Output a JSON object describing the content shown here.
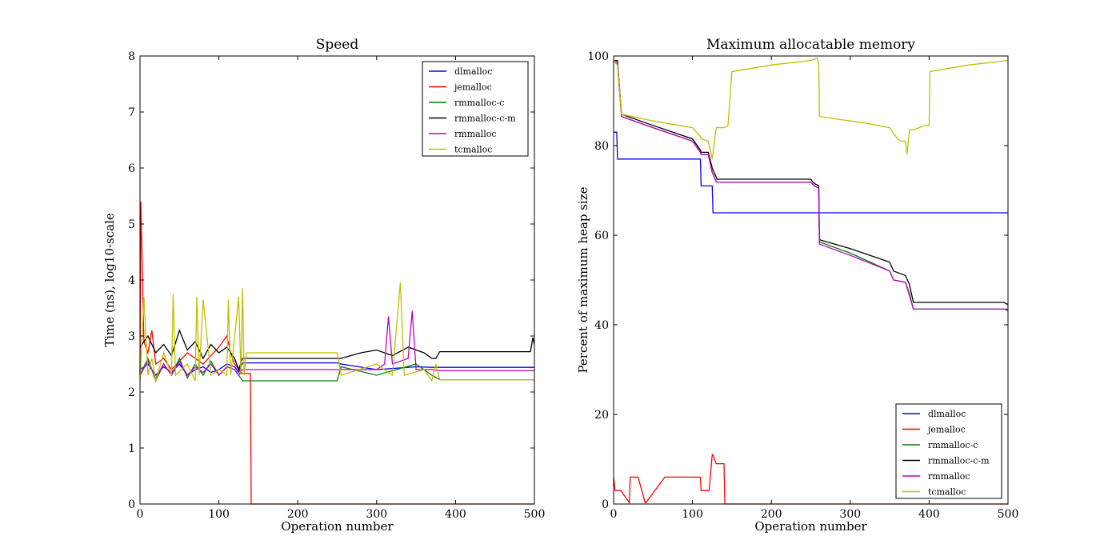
{
  "chart_data": [
    {
      "type": "line",
      "title": "Speed",
      "xlabel": "Operation number",
      "ylabel": "Time (ns), log10-scale",
      "xlim": [
        0,
        500
      ],
      "ylim": [
        0,
        8
      ],
      "xticks": [
        0,
        100,
        200,
        300,
        400,
        500
      ],
      "yticks": [
        0,
        1,
        2,
        3,
        4,
        5,
        6,
        7,
        8
      ],
      "grid": false,
      "legend": "top-right",
      "series": [
        {
          "name": "dlmalloc",
          "color": "#0000ff",
          "x": [
            0,
            10,
            20,
            30,
            40,
            50,
            60,
            70,
            80,
            90,
            100,
            110,
            120,
            125,
            130,
            135,
            250,
            255,
            300,
            350,
            370,
            380,
            500
          ],
          "y": [
            2.4,
            2.5,
            2.3,
            2.45,
            2.35,
            2.5,
            2.3,
            2.4,
            2.45,
            2.35,
            2.4,
            2.5,
            2.45,
            2.35,
            2.52,
            2.52,
            2.52,
            2.5,
            2.4,
            2.45,
            2.44,
            2.44,
            2.44
          ]
        },
        {
          "name": "jemalloc",
          "color": "#ff0000",
          "x": [
            0,
            1,
            5,
            10,
            15,
            20,
            30,
            40,
            60,
            80,
            100,
            110,
            115,
            120,
            125,
            130,
            135,
            140,
            141,
            200,
            300,
            400,
            500
          ],
          "y": [
            2.3,
            5.4,
            2.9,
            2.7,
            3.1,
            2.5,
            2.6,
            2.4,
            2.7,
            2.5,
            2.8,
            3.0,
            2.7,
            2.5,
            2.4,
            2.33,
            2.33,
            2.33,
            0.0,
            0.0,
            0.0,
            0.0,
            0.0
          ]
        },
        {
          "name": "rmmalloc-c",
          "color": "#008000",
          "x": [
            0,
            10,
            20,
            30,
            40,
            50,
            60,
            70,
            80,
            90,
            100,
            110,
            120,
            125,
            130,
            135,
            250,
            255,
            300,
            350,
            370,
            380,
            500
          ],
          "y": [
            2.3,
            2.6,
            2.2,
            2.5,
            2.3,
            2.6,
            2.25,
            2.5,
            2.3,
            2.55,
            2.3,
            2.45,
            2.4,
            2.3,
            2.2,
            2.2,
            2.2,
            2.45,
            2.3,
            2.5,
            2.3,
            2.22,
            2.22
          ]
        },
        {
          "name": "rmmalloc-c-m",
          "color": "#000000",
          "x": [
            0,
            10,
            20,
            30,
            40,
            50,
            60,
            70,
            80,
            90,
            100,
            110,
            120,
            125,
            130,
            135,
            250,
            255,
            280,
            300,
            320,
            340,
            360,
            370,
            375,
            380,
            495,
            498,
            500
          ],
          "y": [
            2.8,
            3.0,
            2.7,
            2.85,
            2.65,
            3.1,
            2.75,
            2.9,
            2.6,
            2.85,
            2.7,
            2.8,
            2.6,
            2.4,
            2.6,
            2.6,
            2.6,
            2.6,
            2.7,
            2.75,
            2.65,
            2.8,
            2.7,
            2.6,
            2.6,
            2.72,
            2.72,
            2.97,
            2.85
          ]
        },
        {
          "name": "rmmalloc",
          "color": "#bf00bf",
          "x": [
            0,
            10,
            20,
            30,
            40,
            50,
            60,
            70,
            80,
            90,
            100,
            110,
            120,
            125,
            130,
            135,
            250,
            255,
            300,
            310,
            315,
            320,
            340,
            345,
            350,
            370,
            380,
            500
          ],
          "y": [
            2.3,
            2.55,
            2.25,
            2.5,
            2.3,
            2.55,
            2.3,
            2.45,
            2.35,
            2.5,
            2.3,
            2.45,
            2.4,
            2.3,
            2.4,
            2.4,
            2.4,
            2.4,
            2.4,
            2.5,
            3.35,
            2.5,
            2.6,
            3.45,
            2.4,
            2.4,
            2.38,
            2.38
          ]
        },
        {
          "name": "tcmalloc",
          "color": "#bfbf00",
          "x": [
            0,
            5,
            10,
            15,
            20,
            30,
            40,
            42,
            45,
            60,
            70,
            72,
            75,
            80,
            90,
            100,
            110,
            112,
            115,
            125,
            128,
            130,
            132,
            135,
            250,
            255,
            300,
            320,
            330,
            335,
            360,
            370,
            375,
            380,
            500
          ],
          "y": [
            2.2,
            3.7,
            2.3,
            2.6,
            2.2,
            2.7,
            2.3,
            3.75,
            2.3,
            2.5,
            2.2,
            3.7,
            2.3,
            3.65,
            2.3,
            2.4,
            2.3,
            3.65,
            2.3,
            3.7,
            2.3,
            3.85,
            2.3,
            2.7,
            2.7,
            2.3,
            2.5,
            2.3,
            3.95,
            2.3,
            2.4,
            2.2,
            2.5,
            2.22,
            2.22
          ]
        }
      ]
    },
    {
      "type": "line",
      "title": "Maximum allocatable memory",
      "xlabel": "Operation number",
      "ylabel": "Percent of maximum heap size",
      "xlim": [
        0,
        500
      ],
      "ylim": [
        0,
        100
      ],
      "xticks": [
        0,
        100,
        200,
        300,
        400,
        500
      ],
      "yticks": [
        0,
        20,
        40,
        60,
        80,
        100
      ],
      "grid": false,
      "legend": "bottom-right",
      "series": [
        {
          "name": "dlmalloc",
          "color": "#0000ff",
          "x": [
            0,
            4,
            5,
            110,
            111,
            125,
            126,
            500
          ],
          "y": [
            83,
            83,
            77,
            77,
            71,
            71,
            65,
            65
          ]
        },
        {
          "name": "jemalloc",
          "color": "#ff0000",
          "x": [
            0,
            2,
            8,
            9,
            20,
            21,
            30,
            31,
            40,
            41,
            65,
            66,
            110,
            111,
            120,
            121,
            125,
            126,
            130,
            131,
            140,
            141,
            145,
            150,
            500
          ],
          "y": [
            6,
            3,
            3,
            3,
            0.3,
            6,
            6,
            6,
            0.3,
            0.3,
            6,
            6,
            6,
            3,
            3,
            3,
            11,
            11,
            9,
            9,
            9,
            0,
            0,
            0,
            0
          ]
        },
        {
          "name": "rmmalloc-c",
          "color": "#008000",
          "x": [
            0,
            5,
            10,
            50,
            100,
            110,
            111,
            120,
            125,
            130,
            131,
            250,
            252,
            255,
            260,
            261,
            300,
            350,
            355,
            370,
            375,
            380,
            495,
            500
          ],
          "y": [
            99,
            98,
            86.5,
            84,
            81,
            78.5,
            78,
            78,
            74,
            72,
            71.8,
            71.8,
            71.5,
            71,
            70.5,
            58.5,
            56,
            52,
            50,
            49.5,
            47,
            43.5,
            43.5,
            43.5
          ]
        },
        {
          "name": "rmmalloc-c-m",
          "color": "#000000",
          "x": [
            0,
            5,
            10,
            50,
            100,
            110,
            111,
            120,
            125,
            130,
            131,
            250,
            252,
            255,
            260,
            261,
            300,
            350,
            355,
            370,
            375,
            380,
            495,
            500
          ],
          "y": [
            99,
            99,
            87,
            84.5,
            81.5,
            79,
            78.5,
            78.5,
            75,
            73,
            72.5,
            72.5,
            72,
            71.5,
            71,
            59,
            57,
            54,
            52,
            51,
            49,
            45,
            45,
            44.5
          ]
        },
        {
          "name": "rmmalloc",
          "color": "#bf00bf",
          "x": [
            0,
            5,
            10,
            50,
            100,
            110,
            111,
            120,
            125,
            130,
            131,
            250,
            252,
            255,
            260,
            261,
            300,
            350,
            355,
            370,
            375,
            380,
            495,
            500
          ],
          "y": [
            99,
            98.5,
            86.5,
            84,
            81,
            78.5,
            78,
            78,
            74,
            72,
            71.8,
            71.8,
            71.5,
            71,
            70.5,
            58,
            55.5,
            52,
            50,
            49.5,
            46.5,
            43.5,
            43.5,
            43.2
          ]
        },
        {
          "name": "tcmalloc",
          "color": "#bfbf00",
          "x": [
            0,
            5,
            10,
            50,
            100,
            110,
            111,
            120,
            125,
            130,
            140,
            145,
            150,
            200,
            250,
            258,
            260,
            261,
            300,
            320,
            350,
            360,
            365,
            370,
            372,
            375,
            380,
            395,
            400,
            401,
            450,
            500
          ],
          "y": [
            99,
            98,
            87,
            85.5,
            84,
            82,
            81.5,
            81,
            77,
            84,
            84,
            84.5,
            96.5,
            98,
            99,
            99.5,
            98.5,
            86.5,
            85.5,
            85,
            84,
            81.5,
            81,
            81,
            78,
            83.5,
            83.5,
            84.5,
            84.5,
            96.5,
            98,
            99
          ]
        }
      ]
    }
  ]
}
